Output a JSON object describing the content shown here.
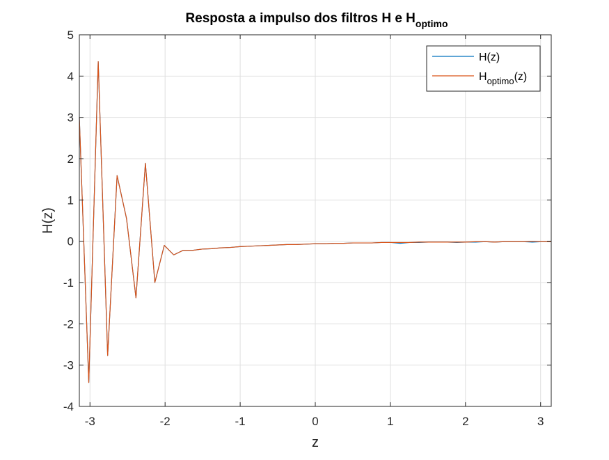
{
  "chart_data": {
    "type": "line",
    "title": {
      "main": "Resposta a impulso dos filtros H e H",
      "subscript": "optimo"
    },
    "xlabel": "z",
    "ylabel": "H(z)",
    "xlim": [
      -3.1416,
      3.1416
    ],
    "ylim": [
      -4,
      5
    ],
    "xticks": [
      -3,
      -2,
      -1,
      0,
      1,
      2,
      3
    ],
    "xtick_labels": [
      "-3",
      "-2",
      "-1",
      "0",
      "1",
      "2",
      "3"
    ],
    "yticks": [
      -4,
      -3,
      -2,
      -1,
      0,
      1,
      2,
      3,
      4,
      5
    ],
    "ytick_labels": [
      "-4",
      "-3",
      "-2",
      "-1",
      "0",
      "1",
      "2",
      "3",
      "4",
      "5"
    ],
    "grid": true,
    "legend_location": "top-right",
    "legend": [
      {
        "main": "H(z)",
        "subscript": "",
        "suffix": ""
      },
      {
        "main": "H",
        "subscript": "optimo",
        "suffix": "(z)"
      }
    ],
    "series": [
      {
        "name": "H(z)",
        "color": "#0072BD",
        "x": [
          -3.1416,
          -3.016,
          -2.8903,
          -2.7647,
          -2.639,
          -2.5133,
          -2.3877,
          -2.262,
          -2.1363,
          -2.0107,
          -1.885,
          -1.7593,
          -1.6337,
          -1.508,
          -1.3823,
          -1.2566,
          -1.131,
          -1.0053,
          -0.8796,
          -0.754,
          -0.6283,
          -0.5027,
          -0.377,
          -0.2513,
          -0.1257,
          0.0,
          0.1257,
          0.2513,
          0.377,
          0.5027,
          0.6283,
          0.754,
          0.8796,
          1.0053,
          1.131,
          1.2566,
          1.3823,
          1.508,
          1.6337,
          1.7593,
          1.885,
          2.0107,
          2.1363,
          2.262,
          2.3877,
          2.5133,
          2.639,
          2.7647,
          2.8903,
          3.016,
          3.1416
        ],
        "values": [
          3.0,
          -3.42,
          4.35,
          -2.77,
          1.59,
          0.55,
          -1.37,
          1.89,
          -1.0,
          -0.1,
          -0.33,
          -0.22,
          -0.22,
          -0.19,
          -0.18,
          -0.16,
          -0.15,
          -0.13,
          -0.12,
          -0.11,
          -0.1,
          -0.09,
          -0.08,
          -0.08,
          -0.07,
          -0.06,
          -0.06,
          -0.05,
          -0.05,
          -0.04,
          -0.04,
          -0.04,
          -0.03,
          -0.03,
          -0.05,
          -0.03,
          -0.03,
          -0.02,
          -0.02,
          -0.02,
          -0.03,
          -0.02,
          -0.02,
          -0.01,
          -0.02,
          -0.01,
          -0.01,
          -0.01,
          -0.02,
          -0.01,
          -0.01
        ]
      },
      {
        "name": "Hoptimo(z)",
        "color": "#D95319",
        "x": [
          -3.1416,
          -3.016,
          -2.8903,
          -2.7647,
          -2.639,
          -2.5133,
          -2.3877,
          -2.262,
          -2.1363,
          -2.0107,
          -1.885,
          -1.7593,
          -1.6337,
          -1.508,
          -1.3823,
          -1.2566,
          -1.131,
          -1.0053,
          -0.8796,
          -0.754,
          -0.6283,
          -0.5027,
          -0.377,
          -0.2513,
          -0.1257,
          0.0,
          0.1257,
          0.2513,
          0.377,
          0.5027,
          0.6283,
          0.754,
          0.8796,
          1.0053,
          1.131,
          1.2566,
          1.3823,
          1.508,
          1.6337,
          1.7593,
          1.885,
          2.0107,
          2.1363,
          2.262,
          2.3877,
          2.5133,
          2.639,
          2.7647,
          2.8903,
          3.016,
          3.1416
        ],
        "values": [
          3.0,
          -3.42,
          4.35,
          -2.77,
          1.59,
          0.55,
          -1.37,
          1.89,
          -1.0,
          -0.1,
          -0.33,
          -0.22,
          -0.22,
          -0.19,
          -0.18,
          -0.16,
          -0.15,
          -0.13,
          -0.12,
          -0.11,
          -0.1,
          -0.09,
          -0.08,
          -0.08,
          -0.07,
          -0.06,
          -0.06,
          -0.05,
          -0.05,
          -0.04,
          -0.04,
          -0.04,
          -0.03,
          -0.03,
          -0.03,
          -0.03,
          -0.02,
          -0.02,
          -0.02,
          -0.02,
          -0.02,
          -0.02,
          -0.01,
          -0.01,
          -0.02,
          -0.01,
          -0.01,
          -0.01,
          0.0,
          -0.01,
          -0.01
        ]
      }
    ]
  }
}
